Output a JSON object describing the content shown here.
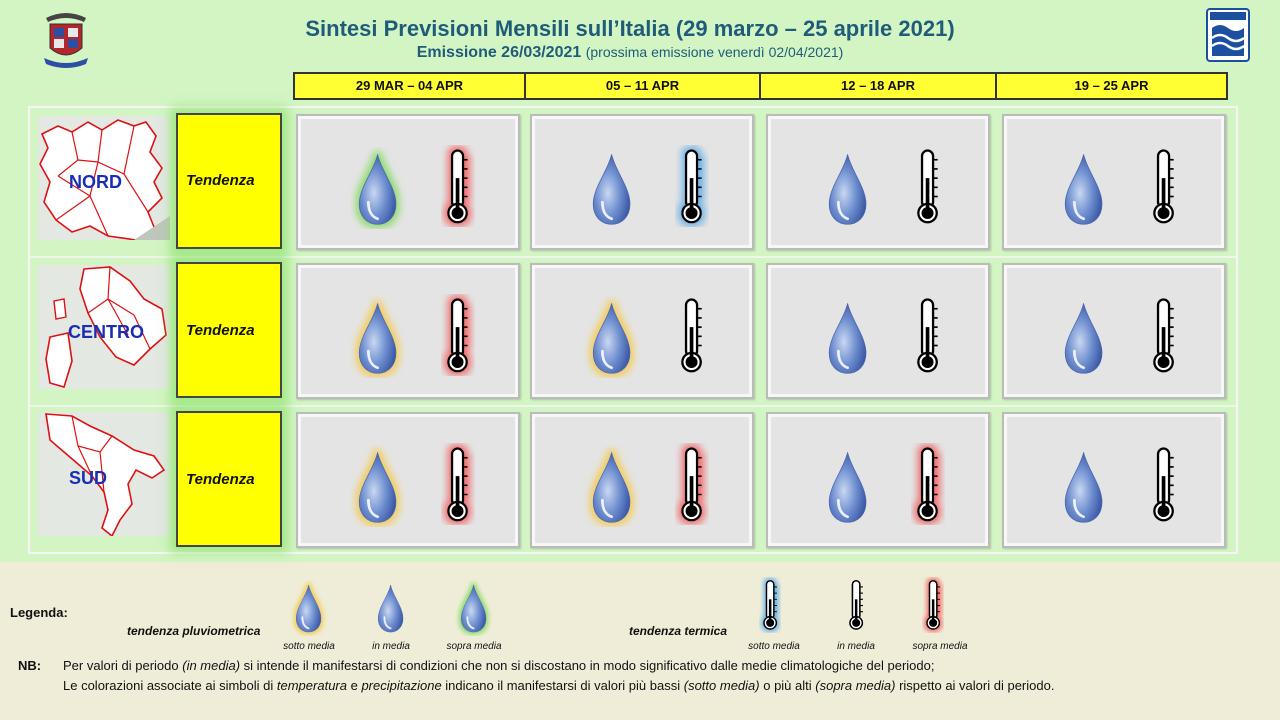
{
  "header": {
    "title": "Sintesi  Previsioni Mensili sull’Italia (29 marzo – 25 aprile 2021)",
    "emission_label": "Emissione 26/03/2021",
    "next_emission": "(prossima emissione venerdì 02/04/2021)"
  },
  "periods": [
    "29 MAR – 04 APR",
    "05 – 11 APR",
    "12 – 18 APR",
    "19 – 25 APR"
  ],
  "regions": [
    {
      "name": "NORD",
      "row_label": "Tendenza",
      "cells": [
        {
          "precip": "sopra media",
          "temp": "sopra media"
        },
        {
          "precip": "in media",
          "temp": "sotto media"
        },
        {
          "precip": "in media",
          "temp": "in media"
        },
        {
          "precip": "in media",
          "temp": "in media"
        }
      ]
    },
    {
      "name": "CENTRO",
      "row_label": "Tendenza",
      "cells": [
        {
          "precip": "sotto media",
          "temp": "sopra media"
        },
        {
          "precip": "sotto media",
          "temp": "in media"
        },
        {
          "precip": "in media",
          "temp": "in media"
        },
        {
          "precip": "in media",
          "temp": "in media"
        }
      ]
    },
    {
      "name": "SUD",
      "row_label": "Tendenza",
      "cells": [
        {
          "precip": "sotto media",
          "temp": "sopra media"
        },
        {
          "precip": "sotto media",
          "temp": "sopra media"
        },
        {
          "precip": "in media",
          "temp": "sopra media"
        },
        {
          "precip": "in media",
          "temp": "in media"
        }
      ]
    }
  ],
  "legend": {
    "title": "Legenda",
    "precip_label": "tendenza pluviometrica",
    "temp_label": "tendenza termica",
    "categories": [
      "sotto media",
      "in media",
      "sopra media"
    ]
  },
  "glow_colors": {
    "precip": {
      "sotto media": "#f5c842",
      "in media": "none",
      "sopra media": "#7ed957"
    },
    "temp": {
      "sotto media": "#5aa9e6",
      "in media": "none",
      "sopra media": "#f05a5a"
    }
  },
  "notes": {
    "label": "NB:",
    "line1_a": "Per valori di periodo ",
    "line1_em": "(in media)",
    "line1_b": " si intende il manifestarsi di condizioni che non si discostano in modo significativo dalle medie climatologiche del periodo;",
    "line2_a": "Le colorazioni associate ai simboli di ",
    "line2_em1": "temperatura",
    "line2_b": " e ",
    "line2_em2": "precipitazione",
    "line2_c": " indicano il manifestarsi di valori più bassi ",
    "line2_em3": "(sotto media)",
    "line2_d": " o più alti ",
    "line2_em4": "(sopra media)",
    "line2_e": " rispetto ai valori di periodo."
  }
}
